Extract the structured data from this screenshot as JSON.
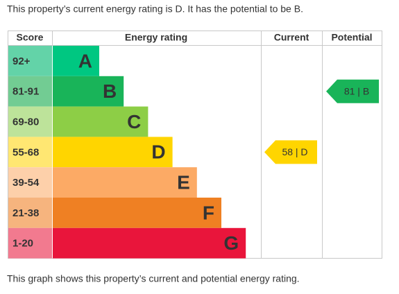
{
  "intro": "This property’s current energy rating is D. It has the potential to be B.",
  "headers": {
    "score": "Score",
    "rating": "Energy rating",
    "current": "Current",
    "potential": "Potential"
  },
  "bands": [
    {
      "score": "92+",
      "letter": "A",
      "color": "#00c781",
      "light": "#63d3a8"
    },
    {
      "score": "81-91",
      "letter": "B",
      "color": "#19b459",
      "light": "#72cc93",
      "potential": "81 | B"
    },
    {
      "score": "69-80",
      "letter": "C",
      "color": "#8dce46",
      "light": "#bde39a"
    },
    {
      "score": "55-68",
      "letter": "D",
      "color": "#ffd500",
      "light": "#ffe772",
      "current": "58 | D"
    },
    {
      "score": "39-54",
      "letter": "E",
      "color": "#fcaa65",
      "light": "#fdd0aa"
    },
    {
      "score": "21-38",
      "letter": "F",
      "color": "#ef8023",
      "light": "#f6b47e"
    },
    {
      "score": "1-20",
      "letter": "G",
      "color": "#e9153b",
      "light": "#f27a8f"
    }
  ],
  "footer": "This graph shows this property’s current and potential energy rating."
}
